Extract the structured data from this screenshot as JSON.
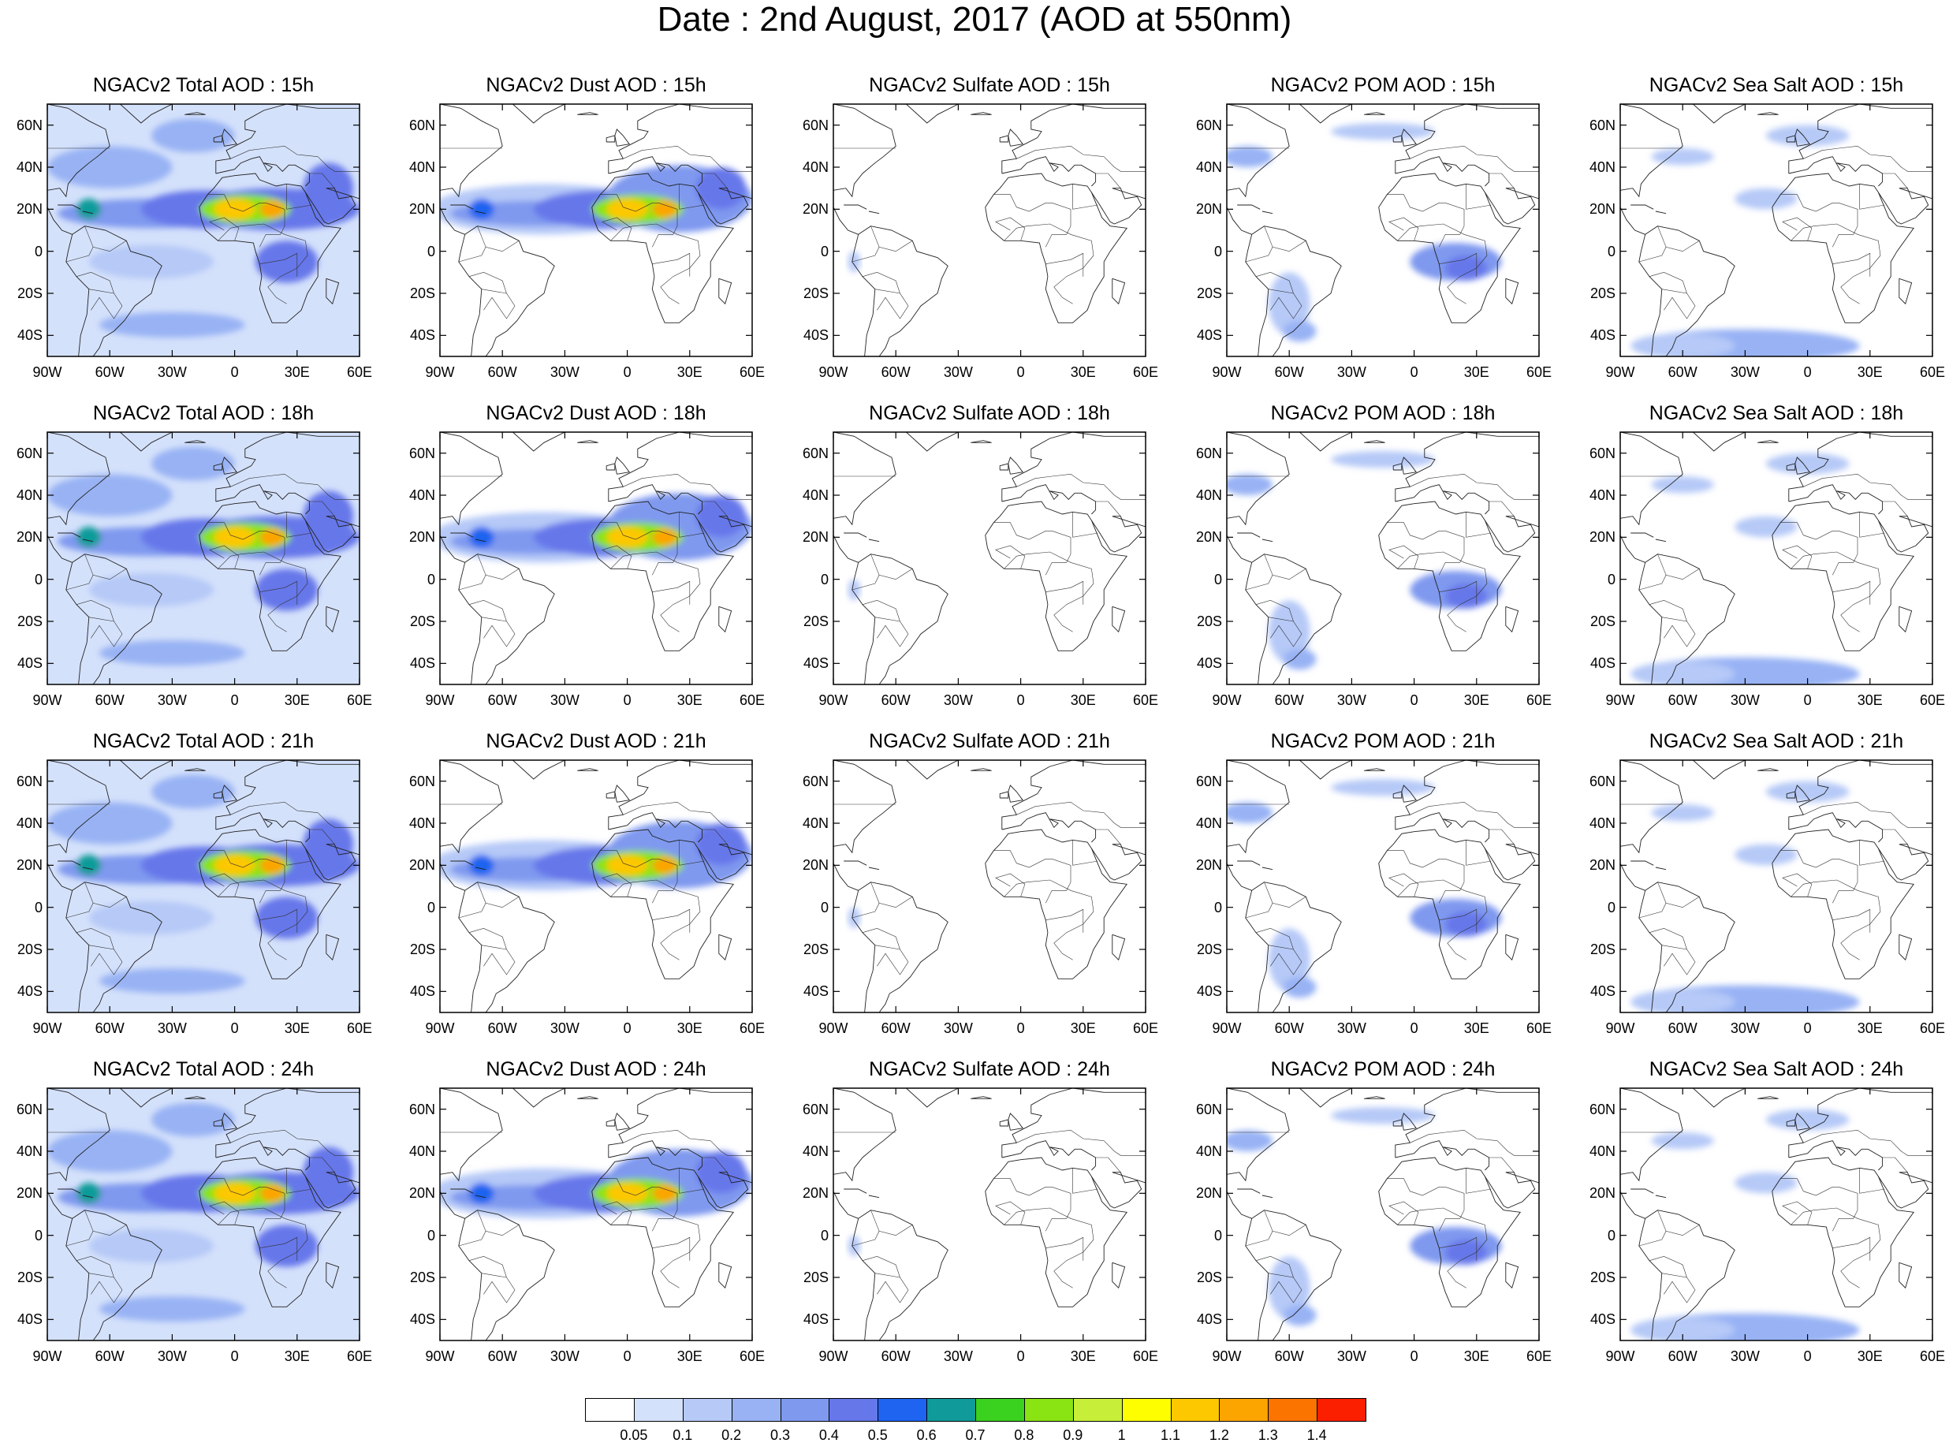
{
  "title": "Date : 2nd August, 2017 (AOD at 550nm)",
  "lat_ticks": [
    "60N",
    "40N",
    "20N",
    "0",
    "20S",
    "40S"
  ],
  "lat_values": [
    60,
    40,
    20,
    0,
    -20,
    -40
  ],
  "lon_ticks": [
    "90W",
    "60W",
    "30W",
    "0",
    "30E",
    "60E"
  ],
  "lon_values": [
    -90,
    -60,
    -30,
    0,
    30,
    60
  ],
  "map_extent": {
    "lon": [
      -90,
      60
    ],
    "lat": [
      -50,
      70
    ]
  },
  "columns": [
    {
      "species": "total",
      "title_prefix": "NGACv2 Total AOD"
    },
    {
      "species": "dust",
      "title_prefix": "NGACv2 Dust AOD"
    },
    {
      "species": "sulfate",
      "title_prefix": "NGACv2 Sulfate AOD"
    },
    {
      "species": "pom",
      "title_prefix": "NGACv2 POM AOD"
    },
    {
      "species": "seasalt",
      "title_prefix": "NGACv2 Sea Salt AOD"
    }
  ],
  "panel_titles": [
    [
      "NGACv2 Total AOD : 15h",
      "NGACv2 Dust AOD : 15h",
      "NGACv2 Sulfate AOD : 15h",
      "NGACv2 POM AOD : 15h",
      "NGACv2 Sea Salt AOD : 15h"
    ],
    [
      "NGACv2 Total AOD : 18h",
      "NGACv2 Dust AOD : 18h",
      "NGACv2 Sulfate AOD : 18h",
      "NGACv2 POM AOD : 18h",
      "NGACv2 Sea Salt AOD : 18h"
    ],
    [
      "NGACv2 Total AOD : 21h",
      "NGACv2 Dust AOD : 21h",
      "NGACv2 Sulfate AOD : 21h",
      "NGACv2 POM AOD : 21h",
      "NGACv2 Sea Salt AOD : 21h"
    ],
    [
      "NGACv2 Total AOD : 24h",
      "NGACv2 Dust AOD : 24h",
      "NGACv2 Sulfate AOD : 24h",
      "NGACv2 POM AOD : 24h",
      "NGACv2 Sea Salt  AOD : 24h"
    ]
  ],
  "colorbar": {
    "labels": [
      "0.05",
      "0.1",
      "0.2",
      "0.3",
      "0.4",
      "0.5",
      "0.6",
      "0.7",
      "0.8",
      "0.9",
      "1",
      "1.1",
      "1.2",
      "1.3",
      "1.4"
    ],
    "colors": [
      "#ffffff",
      "#d4e1fb",
      "#b6c9f7",
      "#98b2f4",
      "#7f99ef",
      "#6677ea",
      "#1f64f0",
      "#109b9a",
      "#3bd21f",
      "#8ae312",
      "#c7ef3a",
      "#fefe00",
      "#fdc800",
      "#fca400",
      "#fb7400",
      "#fb1f00"
    ]
  },
  "fields": {
    "total": {
      "bg": "#d4e1fb",
      "blobs": [
        {
          "lon": -60,
          "lat": 40,
          "r": [
            30,
            10
          ],
          "v": 0.2
        },
        {
          "lon": -20,
          "lat": 55,
          "r": [
            20,
            8
          ],
          "v": 0.2
        },
        {
          "lon": -40,
          "lat": 18,
          "r": [
            45,
            7
          ],
          "v": 0.3
        },
        {
          "lon": -15,
          "lat": 20,
          "r": [
            30,
            9
          ],
          "v": 0.4
        },
        {
          "lon": 20,
          "lat": 20,
          "r": [
            40,
            10
          ],
          "v": 0.45
        },
        {
          "lon": -70,
          "lat": 20,
          "r": [
            6,
            5
          ],
          "v": 0.6
        },
        {
          "lon": 5,
          "lat": 20,
          "r": [
            22,
            7
          ],
          "v": 0.8
        },
        {
          "lon": 0,
          "lat": 20,
          "r": [
            10,
            5
          ],
          "v": 1.1
        },
        {
          "lon": 18,
          "lat": 20,
          "r": [
            6,
            4
          ],
          "v": 1.2
        },
        {
          "lon": 25,
          "lat": -5,
          "r": [
            15,
            10
          ],
          "v": 0.4
        },
        {
          "lon": -30,
          "lat": -35,
          "r": [
            35,
            6
          ],
          "v": 0.2
        },
        {
          "lon": -40,
          "lat": -5,
          "r": [
            30,
            8
          ],
          "v": 0.15
        },
        {
          "lon": 45,
          "lat": 30,
          "r": [
            12,
            12
          ],
          "v": 0.4
        }
      ]
    },
    "dust": {
      "bg": "#ffffff",
      "blobs": [
        {
          "lon": -40,
          "lat": 20,
          "r": [
            55,
            12
          ],
          "v": 0.15
        },
        {
          "lon": -45,
          "lat": 18,
          "r": [
            40,
            6
          ],
          "v": 0.3
        },
        {
          "lon": -10,
          "lat": 20,
          "r": [
            35,
            9
          ],
          "v": 0.4
        },
        {
          "lon": 25,
          "lat": 25,
          "r": [
            35,
            16
          ],
          "v": 0.3
        },
        {
          "lon": -70,
          "lat": 20,
          "r": [
            6,
            5
          ],
          "v": 0.5
        },
        {
          "lon": 5,
          "lat": 20,
          "r": [
            22,
            7
          ],
          "v": 0.8
        },
        {
          "lon": 0,
          "lat": 20,
          "r": [
            10,
            5
          ],
          "v": 1.1
        },
        {
          "lon": 18,
          "lat": 20,
          "r": [
            6,
            4
          ],
          "v": 1.2
        },
        {
          "lon": 45,
          "lat": 30,
          "r": [
            12,
            10
          ],
          "v": 0.4
        }
      ]
    },
    "sulfate": {
      "bg": "#ffffff",
      "blobs": [
        {
          "lon": -80,
          "lat": -5,
          "r": [
            3,
            5
          ],
          "v": 0.1
        }
      ]
    },
    "pom": {
      "bg": "#ffffff",
      "blobs": [
        {
          "lon": -80,
          "lat": 45,
          "r": [
            12,
            5
          ],
          "v": 0.2
        },
        {
          "lon": -15,
          "lat": 57,
          "r": [
            25,
            4
          ],
          "v": 0.15
        },
        {
          "lon": 20,
          "lat": -5,
          "r": [
            22,
            9
          ],
          "v": 0.3
        },
        {
          "lon": 25,
          "lat": -8,
          "r": [
            10,
            6
          ],
          "v": 0.45
        },
        {
          "lon": -60,
          "lat": -25,
          "r": [
            10,
            15
          ],
          "v": 0.15
        },
        {
          "lon": -55,
          "lat": -38,
          "r": [
            8,
            5
          ],
          "v": 0.2
        }
      ]
    },
    "seasalt": {
      "bg": "#ffffff",
      "blobs": [
        {
          "lon": -30,
          "lat": -45,
          "r": [
            55,
            8
          ],
          "v": 0.2
        },
        {
          "lon": -60,
          "lat": -45,
          "r": [
            25,
            6
          ],
          "v": 0.15
        },
        {
          "lon": -60,
          "lat": 45,
          "r": [
            15,
            4
          ],
          "v": 0.15
        },
        {
          "lon": 0,
          "lat": 55,
          "r": [
            20,
            5
          ],
          "v": 0.15
        },
        {
          "lon": -20,
          "lat": 25,
          "r": [
            15,
            5
          ],
          "v": 0.15
        }
      ]
    }
  }
}
